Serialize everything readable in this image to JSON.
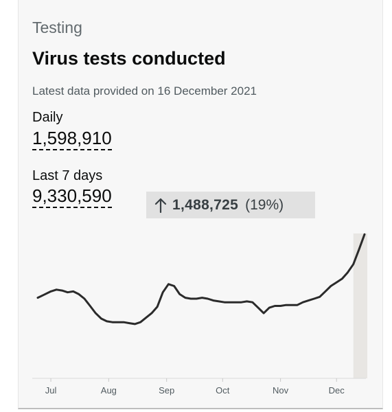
{
  "card": {
    "category": "Testing",
    "title": "Virus tests conducted",
    "updated": "Latest data provided on 16 December 2021"
  },
  "metrics": {
    "daily": {
      "label": "Daily",
      "value": "1,598,910"
    },
    "last7": {
      "label": "Last 7 days",
      "value": "9,330,590"
    }
  },
  "change": {
    "direction": "up",
    "icon": "arrow-up-icon",
    "value": "1,488,725",
    "percent": "(19%)"
  },
  "colors": {
    "line": "#2b2b2b",
    "highlight": "#e8e6e3",
    "change_bg": "#e1e1e1",
    "card_bg": "#f7f7f7"
  },
  "chart_data": {
    "type": "line",
    "title": "",
    "xlabel": "",
    "ylabel": "",
    "x_ticks": [
      "Jul",
      "Aug",
      "Sep",
      "Oct",
      "Nov",
      "Dec"
    ],
    "grid": false,
    "y_axis_labels_shown": false,
    "ylim": [
      0,
      1.6
    ],
    "highlight_period": "last 7 days",
    "series": [
      {
        "name": "",
        "points": [
          [
            "2021-06-24",
            0.89
          ],
          [
            "2021-06-27",
            0.92
          ],
          [
            "2021-07-01",
            0.96
          ],
          [
            "2021-07-04",
            0.98
          ],
          [
            "2021-07-07",
            0.97
          ],
          [
            "2021-07-10",
            0.95
          ],
          [
            "2021-07-13",
            0.96
          ],
          [
            "2021-07-16",
            0.93
          ],
          [
            "2021-07-19",
            0.88
          ],
          [
            "2021-07-22",
            0.8
          ],
          [
            "2021-07-25",
            0.72
          ],
          [
            "2021-07-28",
            0.66
          ],
          [
            "2021-07-31",
            0.63
          ],
          [
            "2021-08-03",
            0.62
          ],
          [
            "2021-08-06",
            0.62
          ],
          [
            "2021-08-09",
            0.62
          ],
          [
            "2021-08-12",
            0.61
          ],
          [
            "2021-08-15",
            0.6
          ],
          [
            "2021-08-18",
            0.62
          ],
          [
            "2021-08-21",
            0.67
          ],
          [
            "2021-08-24",
            0.72
          ],
          [
            "2021-08-27",
            0.79
          ],
          [
            "2021-08-30",
            0.95
          ],
          [
            "2021-09-02",
            1.04
          ],
          [
            "2021-09-05",
            1.02
          ],
          [
            "2021-09-08",
            0.93
          ],
          [
            "2021-09-11",
            0.89
          ],
          [
            "2021-09-14",
            0.88
          ],
          [
            "2021-09-17",
            0.88
          ],
          [
            "2021-09-20",
            0.89
          ],
          [
            "2021-09-23",
            0.88
          ],
          [
            "2021-09-26",
            0.86
          ],
          [
            "2021-09-29",
            0.85
          ],
          [
            "2021-10-02",
            0.84
          ],
          [
            "2021-10-05",
            0.84
          ],
          [
            "2021-10-08",
            0.84
          ],
          [
            "2021-10-11",
            0.84
          ],
          [
            "2021-10-14",
            0.85
          ],
          [
            "2021-10-17",
            0.84
          ],
          [
            "2021-10-20",
            0.78
          ],
          [
            "2021-10-23",
            0.72
          ],
          [
            "2021-10-26",
            0.78
          ],
          [
            "2021-10-29",
            0.8
          ],
          [
            "2021-11-01",
            0.8
          ],
          [
            "2021-11-04",
            0.81
          ],
          [
            "2021-11-07",
            0.81
          ],
          [
            "2021-11-10",
            0.81
          ],
          [
            "2021-11-13",
            0.84
          ],
          [
            "2021-11-16",
            0.86
          ],
          [
            "2021-11-19",
            0.88
          ],
          [
            "2021-11-22",
            0.9
          ],
          [
            "2021-11-25",
            0.96
          ],
          [
            "2021-11-28",
            1.02
          ],
          [
            "2021-12-01",
            1.06
          ],
          [
            "2021-12-04",
            1.1
          ],
          [
            "2021-12-07",
            1.17
          ],
          [
            "2021-12-10",
            1.26
          ],
          [
            "2021-12-13",
            1.42
          ],
          [
            "2021-12-16",
            1.59
          ]
        ]
      }
    ]
  }
}
